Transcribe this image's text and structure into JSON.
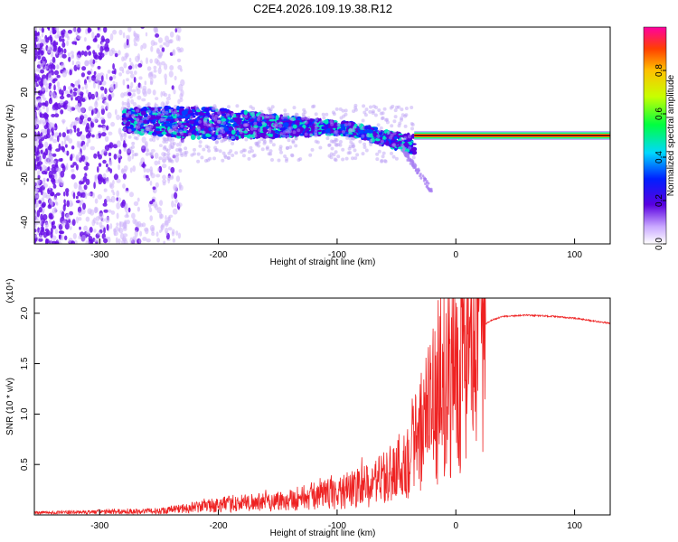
{
  "title": "C2E4.2026.109.19.38.R12",
  "chart_data": [
    {
      "id": "spectrogram",
      "type": "heatmap",
      "xlabel": "Height of straight line (km)",
      "ylabel": "Frequency (Hz)",
      "xlim": [
        -355,
        130
      ],
      "ylim": [
        -50,
        50
      ],
      "x_ticks": [
        -300,
        -200,
        -100,
        0,
        100
      ],
      "y_ticks": [
        -40,
        -20,
        0,
        20,
        40
      ],
      "x_tick_labels": [
        "-300",
        "-200",
        "-100",
        "0",
        "100"
      ],
      "y_tick_labels": [
        "-40",
        "-20",
        "0",
        "20",
        "40"
      ],
      "colorbar": {
        "label": "Normalized spectral amplitude",
        "range": [
          0,
          1
        ],
        "ticks": [
          0.0,
          0.2,
          0.4,
          0.6,
          0.8
        ],
        "tick_labels": [
          "0.0",
          "0.2",
          "0.4",
          "0.6",
          "0.8"
        ]
      },
      "features": {
        "noise_region_x": [
          -355,
          -230
        ],
        "band_start_x": -280,
        "band_end_x": -35,
        "band_center_freq_start": 7,
        "band_center_freq_end": 2,
        "tail_end": [
          -20,
          -26
        ],
        "carrier_start_x": -35,
        "carrier_freq": 0
      },
      "colors": {
        "carrier": "#ff1a1a",
        "band_low": "#5a00e0",
        "band_high": "#00e0c0"
      }
    },
    {
      "id": "snr",
      "type": "line",
      "xlabel": "Height of straight line (km)",
      "ylabel": "SNR (10 * v/v)",
      "y_scale_label": "(x10⁴)",
      "xlim": [
        -355,
        130
      ],
      "ylim": [
        0,
        2.15
      ],
      "x_ticks": [
        -300,
        -200,
        -100,
        0,
        100
      ],
      "y_ticks": [
        0.5,
        1.0,
        1.5,
        2.0
      ],
      "x_tick_labels": [
        "-300",
        "-200",
        "-100",
        "0",
        "100"
      ],
      "y_tick_labels": [
        "0.5",
        "1.0",
        "1.5",
        "2.0"
      ],
      "series": [
        {
          "name": "SNR",
          "color": "#ee2222",
          "x": [
            -355,
            -300,
            -250,
            -200,
            -150,
            -100,
            -70,
            -50,
            -40,
            -30,
            -20,
            -10,
            0,
            10,
            20,
            30,
            40,
            60,
            80,
            100,
            130
          ],
          "y": [
            0.02,
            0.03,
            0.04,
            0.1,
            0.14,
            0.22,
            0.3,
            0.45,
            0.6,
            0.8,
            1.05,
            1.3,
            1.5,
            1.7,
            1.85,
            1.93,
            1.97,
            1.98,
            1.97,
            1.95,
            1.9
          ]
        }
      ]
    }
  ]
}
